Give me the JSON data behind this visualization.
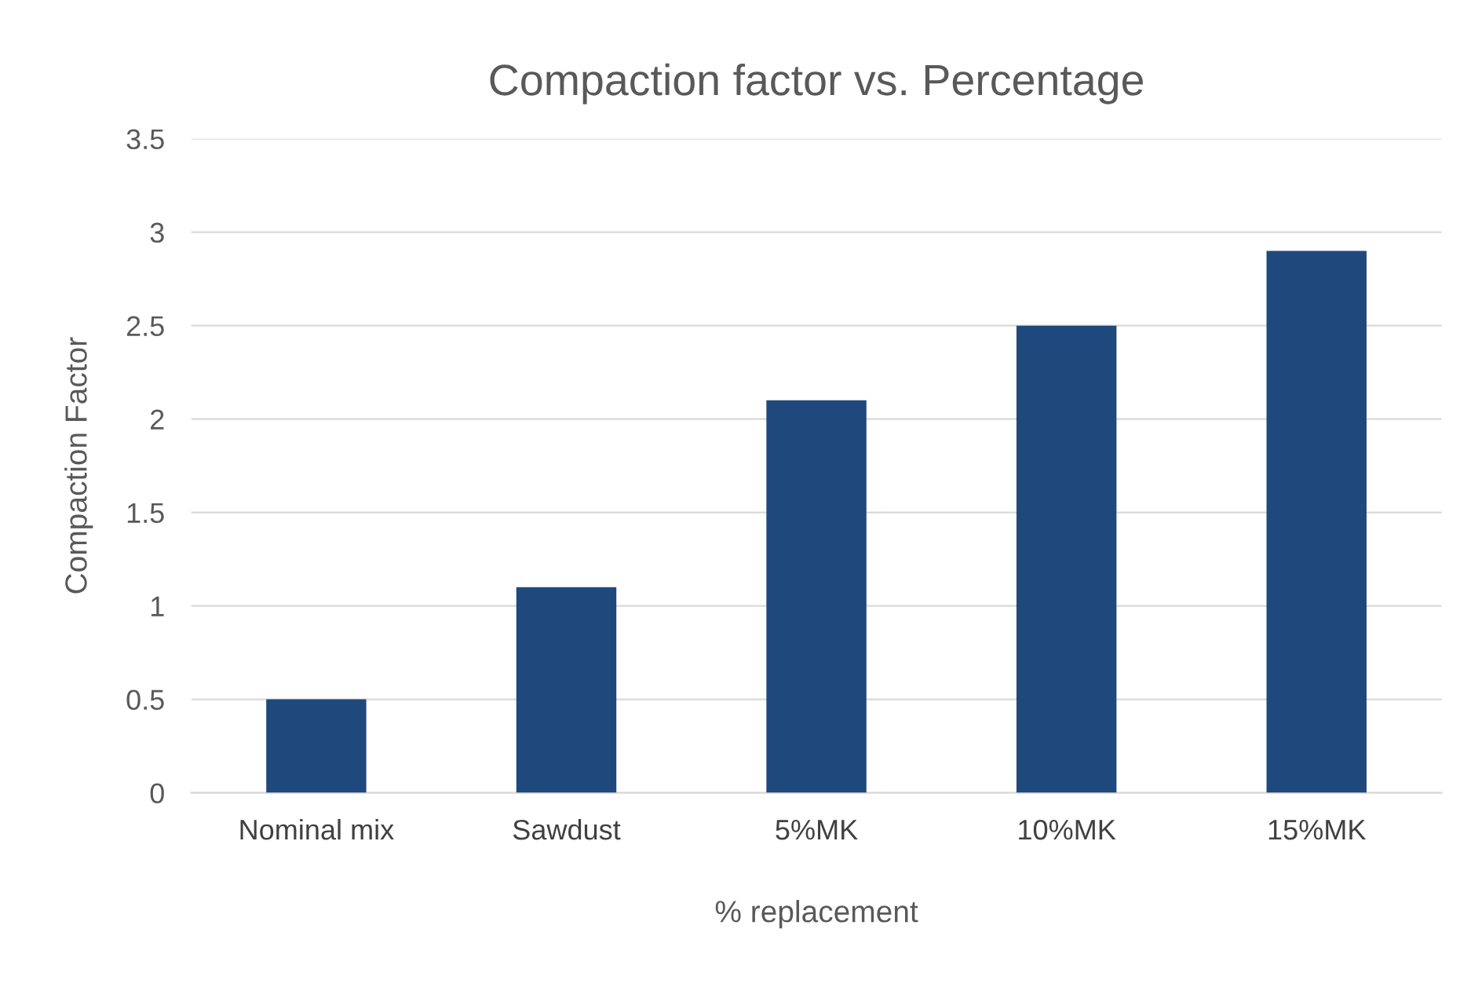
{
  "chart_data": {
    "type": "bar",
    "title": "Compaction factor vs. Percentage",
    "xlabel": "% replacement",
    "ylabel": "Compaction Factor",
    "categories": [
      "Nominal mix",
      "Sawdust",
      "5%MK",
      "10%MK",
      "15%MK"
    ],
    "values": [
      0.5,
      1.1,
      2.1,
      2.5,
      2.9
    ],
    "color": "#1f497d",
    "ylim": [
      0,
      3.5
    ],
    "yticks": [
      0,
      0.5,
      1,
      1.5,
      2,
      2.5,
      3,
      3.5
    ],
    "grid": "y"
  }
}
